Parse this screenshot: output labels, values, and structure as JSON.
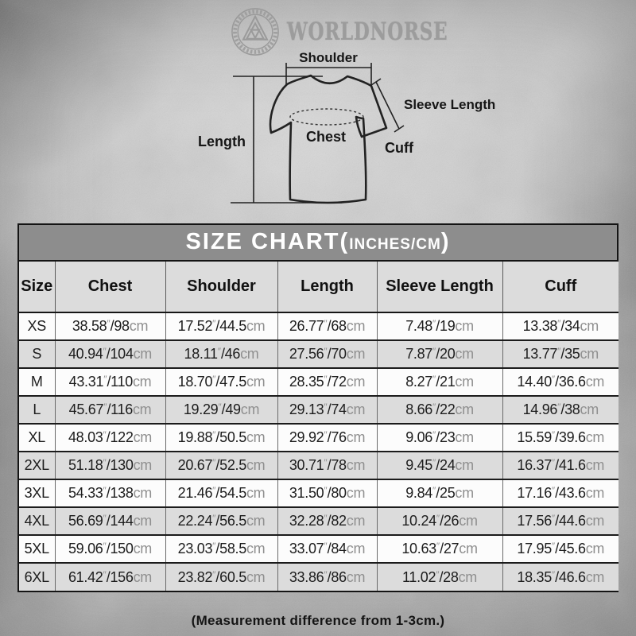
{
  "brand": {
    "name": "WORLDNORSE",
    "emblem": "valknut-icon"
  },
  "diagram": {
    "labels": {
      "shoulder": "Shoulder",
      "sleeve_length": "Sleeve Length",
      "length": "Length",
      "chest": "Chest",
      "cuff": "Cuff"
    }
  },
  "size_chart": {
    "title_main": "SIZE CHART(",
    "title_sub": "INCHES/CM",
    "title_close": ")",
    "columns": [
      "Size",
      "Chest",
      "Shoulder",
      "Length",
      "Sleeve Length",
      "Cuff"
    ],
    "inch_mark": "″",
    "unit": "cm",
    "rows": [
      {
        "size": "XS",
        "chest": {
          "in": "38.58",
          "cm": "98"
        },
        "shoulder": {
          "in": "17.52",
          "cm": "44.5"
        },
        "length": {
          "in": "26.77",
          "cm": "68"
        },
        "sleeve_length": {
          "in": "7.48",
          "cm": "19"
        },
        "cuff": {
          "in": "13.38",
          "cm": "34"
        }
      },
      {
        "size": "S",
        "chest": {
          "in": "40.94",
          "cm": "104"
        },
        "shoulder": {
          "in": "18.11",
          "cm": "46"
        },
        "length": {
          "in": "27.56",
          "cm": "70"
        },
        "sleeve_length": {
          "in": "7.87",
          "cm": "20"
        },
        "cuff": {
          "in": "13.77",
          "cm": "35"
        }
      },
      {
        "size": "M",
        "chest": {
          "in": "43.31",
          "cm": "110"
        },
        "shoulder": {
          "in": "18.70",
          "cm": "47.5"
        },
        "length": {
          "in": "28.35",
          "cm": "72"
        },
        "sleeve_length": {
          "in": "8.27",
          "cm": "21"
        },
        "cuff": {
          "in": "14.40",
          "cm": "36.6"
        }
      },
      {
        "size": "L",
        "chest": {
          "in": "45.67",
          "cm": "116"
        },
        "shoulder": {
          "in": "19.29",
          "cm": "49"
        },
        "length": {
          "in": "29.13",
          "cm": "74"
        },
        "sleeve_length": {
          "in": "8.66",
          "cm": "22"
        },
        "cuff": {
          "in": "14.96",
          "cm": "38"
        }
      },
      {
        "size": "XL",
        "chest": {
          "in": "48.03",
          "cm": "122"
        },
        "shoulder": {
          "in": "19.88",
          "cm": "50.5"
        },
        "length": {
          "in": "29.92",
          "cm": "76"
        },
        "sleeve_length": {
          "in": "9.06",
          "cm": "23"
        },
        "cuff": {
          "in": "15.59",
          "cm": "39.6"
        }
      },
      {
        "size": "2XL",
        "chest": {
          "in": "51.18",
          "cm": "130"
        },
        "shoulder": {
          "in": "20.67",
          "cm": "52.5"
        },
        "length": {
          "in": "30.71",
          "cm": "78"
        },
        "sleeve_length": {
          "in": "9.45",
          "cm": "24"
        },
        "cuff": {
          "in": "16.37",
          "cm": "41.6"
        }
      },
      {
        "size": "3XL",
        "chest": {
          "in": "54.33",
          "cm": "138"
        },
        "shoulder": {
          "in": "21.46",
          "cm": "54.5"
        },
        "length": {
          "in": "31.50",
          "cm": "80"
        },
        "sleeve_length": {
          "in": "9.84",
          "cm": "25"
        },
        "cuff": {
          "in": "17.16",
          "cm": "43.6"
        }
      },
      {
        "size": "4XL",
        "chest": {
          "in": "56.69",
          "cm": "144"
        },
        "shoulder": {
          "in": "22.24",
          "cm": "56.5"
        },
        "length": {
          "in": "32.28",
          "cm": "82"
        },
        "sleeve_length": {
          "in": "10.24",
          "cm": "26"
        },
        "cuff": {
          "in": "17.56",
          "cm": "44.6"
        }
      },
      {
        "size": "5XL",
        "chest": {
          "in": "59.06",
          "cm": "150"
        },
        "shoulder": {
          "in": "23.03",
          "cm": "58.5"
        },
        "length": {
          "in": "33.07",
          "cm": "84"
        },
        "sleeve_length": {
          "in": "10.63",
          "cm": "27"
        },
        "cuff": {
          "in": "17.95",
          "cm": "45.6"
        }
      },
      {
        "size": "6XL",
        "chest": {
          "in": "61.42",
          "cm": "156"
        },
        "shoulder": {
          "in": "23.82",
          "cm": "60.5"
        },
        "length": {
          "in": "33.86",
          "cm": "86"
        },
        "sleeve_length": {
          "in": "11.02",
          "cm": "28"
        },
        "cuff": {
          "in": "18.35",
          "cm": "46.6"
        }
      }
    ],
    "footnote": "(Measurement difference from 1-3cm.)"
  },
  "colors": {
    "title_bar": "#8d8d8d",
    "header_row": "#dcdcdc",
    "row_alt": "#dcdcdc",
    "row_plain": "#fcfcfc",
    "border_dark": "#141414",
    "unit_gray": "#8f8f8f",
    "logo_gray": "#9c9c9c"
  }
}
